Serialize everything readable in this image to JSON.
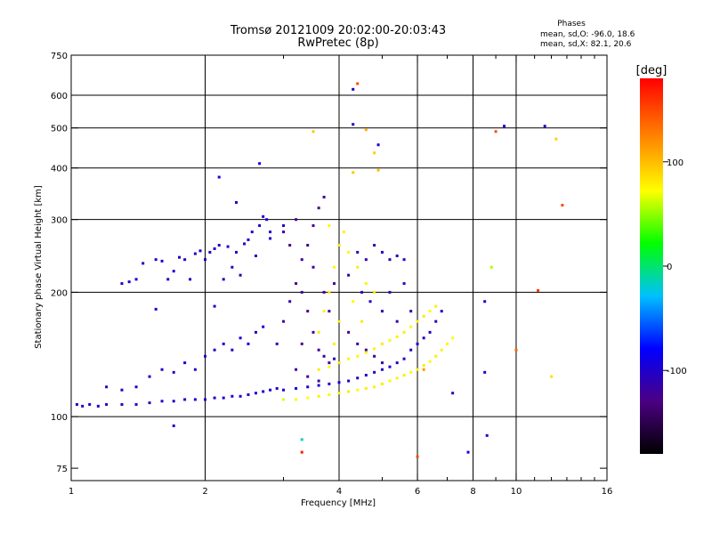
{
  "chart_data": {
    "type": "scatter",
    "title": "Tromsø 20121009 20:02:00-20:03:43",
    "subtitle": "RwPretec (8p)",
    "xlabel": "Frequency [MHz]",
    "ylabel": "Stationary phase Virtual Height [km]",
    "x_scale": "log",
    "y_scale": "log",
    "xlim": [
      1,
      16
    ],
    "ylim": [
      70,
      750
    ],
    "x_ticks": [
      1,
      2,
      4,
      6,
      8,
      10,
      16
    ],
    "x_tick_labels": [
      "1",
      "2",
      "4",
      "6",
      "8",
      "10",
      "16"
    ],
    "x_gridlines": [
      2,
      4,
      6,
      8,
      10
    ],
    "y_ticks": [
      75,
      100,
      200,
      300,
      400,
      500,
      600,
      750
    ],
    "y_tick_labels": [
      "75",
      "100",
      "200",
      "300",
      "400",
      "500",
      "600",
      "750"
    ],
    "y_gridlines": [
      100,
      200,
      300,
      400,
      500,
      600
    ],
    "grid": true,
    "colorbar": {
      "title": "[deg]",
      "range": [
        -180,
        180
      ],
      "ticks": [
        100,
        0,
        -100
      ],
      "tick_labels": [
        "100",
        "0",
        "-100"
      ],
      "position": "right",
      "colormap": [
        "#000000",
        "#4b0082",
        "#0000ff",
        "#00c0ff",
        "#00ff00",
        "#ffff00",
        "#ff8000",
        "#ff0000"
      ]
    },
    "stats_title": "Phases",
    "stats": [
      "mean, sd,O: -96.0, 18.6",
      "mean, sd,X:  82.1, 20.6"
    ],
    "series": [
      {
        "mode": "O",
        "points": [
          [
            1.03,
            107,
            -100
          ],
          [
            1.06,
            106,
            -100
          ],
          [
            1.1,
            107,
            -102
          ],
          [
            1.15,
            106,
            -98
          ],
          [
            1.2,
            107,
            -100
          ],
          [
            1.3,
            107,
            -104
          ],
          [
            1.4,
            107,
            -100
          ],
          [
            1.5,
            108,
            -100
          ],
          [
            1.6,
            109,
            -102
          ],
          [
            1.7,
            109,
            -100
          ],
          [
            1.8,
            110,
            -98
          ],
          [
            1.9,
            110,
            -100
          ],
          [
            2.0,
            110,
            -96
          ],
          [
            2.1,
            111,
            -100
          ],
          [
            2.2,
            111,
            -94
          ],
          [
            2.3,
            112,
            -98
          ],
          [
            2.4,
            112,
            -100
          ],
          [
            2.5,
            113,
            -96
          ],
          [
            2.6,
            114,
            -98
          ],
          [
            2.7,
            115,
            -100
          ],
          [
            2.8,
            116,
            -92
          ],
          [
            2.9,
            117,
            -96
          ],
          [
            1.2,
            118,
            -100
          ],
          [
            1.3,
            116,
            -96
          ],
          [
            1.4,
            118,
            -100
          ],
          [
            1.5,
            125,
            -98
          ],
          [
            1.6,
            130,
            -100
          ],
          [
            1.7,
            128,
            -96
          ],
          [
            1.8,
            135,
            -100
          ],
          [
            1.9,
            130,
            -102
          ],
          [
            2.0,
            140,
            -98
          ],
          [
            2.1,
            145,
            -100
          ],
          [
            2.2,
            150,
            -96
          ],
          [
            2.3,
            145,
            -100
          ],
          [
            2.4,
            155,
            -94
          ],
          [
            2.5,
            150,
            -98
          ],
          [
            2.6,
            160,
            -100
          ],
          [
            2.7,
            165,
            -96
          ],
          [
            1.3,
            210,
            -100
          ],
          [
            1.35,
            212,
            -98
          ],
          [
            1.4,
            215,
            -96
          ],
          [
            1.45,
            235,
            -100
          ],
          [
            1.55,
            240,
            -102
          ],
          [
            1.6,
            238,
            -98
          ],
          [
            1.65,
            215,
            -100
          ],
          [
            1.7,
            225,
            -96
          ],
          [
            1.75,
            243,
            -100
          ],
          [
            1.8,
            240,
            -98
          ],
          [
            1.85,
            215,
            -100
          ],
          [
            1.9,
            248,
            -102
          ],
          [
            1.95,
            252,
            -96
          ],
          [
            2.0,
            240,
            -100
          ],
          [
            2.05,
            250,
            -98
          ],
          [
            2.1,
            255,
            -100
          ],
          [
            2.15,
            260,
            -96
          ],
          [
            2.2,
            215,
            -98
          ],
          [
            2.25,
            258,
            -100
          ],
          [
            2.3,
            230,
            -104
          ],
          [
            2.35,
            250,
            -98
          ],
          [
            2.4,
            220,
            -100
          ],
          [
            2.45,
            262,
            -96
          ],
          [
            2.5,
            268,
            -98
          ],
          [
            2.55,
            280,
            -100
          ],
          [
            2.6,
            245,
            -102
          ],
          [
            2.65,
            290,
            -98
          ],
          [
            2.7,
            305,
            -96
          ],
          [
            2.75,
            300,
            -100
          ],
          [
            2.8,
            270,
            -98
          ],
          [
            2.65,
            410,
            -100
          ],
          [
            2.15,
            380,
            -98
          ],
          [
            2.35,
            330,
            -100
          ],
          [
            2.9,
            150,
            -110
          ],
          [
            3.0,
            170,
            -120
          ],
          [
            3.1,
            190,
            -115
          ],
          [
            3.2,
            210,
            -125
          ],
          [
            3.3,
            240,
            -118
          ],
          [
            3.4,
            260,
            -122
          ],
          [
            3.5,
            290,
            -120
          ],
          [
            3.6,
            320,
            -124
          ],
          [
            3.7,
            340,
            -118
          ],
          [
            3.1,
            260,
            -126
          ],
          [
            3.2,
            300,
            -120
          ],
          [
            3.0,
            280,
            -118
          ],
          [
            3.3,
            200,
            -122
          ],
          [
            3.4,
            180,
            -120
          ],
          [
            3.5,
            160,
            -124
          ],
          [
            3.6,
            145,
            -118
          ],
          [
            3.7,
            140,
            -120
          ],
          [
            3.8,
            135,
            -116
          ],
          [
            3.9,
            138,
            -110
          ],
          [
            3.2,
            130,
            -120
          ],
          [
            3.4,
            125,
            -122
          ],
          [
            3.6,
            122,
            -118
          ],
          [
            3.3,
            150,
            -124
          ],
          [
            3.5,
            230,
            -120
          ],
          [
            3.7,
            200,
            -118
          ],
          [
            3.8,
            180,
            -124
          ],
          [
            3.9,
            210,
            -120
          ],
          [
            4.0,
            170,
            -118
          ],
          [
            4.2,
            160,
            -122
          ],
          [
            4.4,
            150,
            -120
          ],
          [
            4.6,
            145,
            -116
          ],
          [
            4.8,
            140,
            -118
          ],
          [
            5.0,
            135,
            -112
          ],
          [
            4.2,
            220,
            -110
          ],
          [
            4.4,
            250,
            -108
          ],
          [
            4.6,
            240,
            -112
          ],
          [
            4.8,
            260,
            -110
          ],
          [
            5.0,
            250,
            -106
          ],
          [
            5.2,
            240,
            -110
          ],
          [
            5.4,
            245,
            -108
          ],
          [
            5.6,
            240,
            -104
          ],
          [
            5.0,
            180,
            -110
          ],
          [
            5.2,
            200,
            -108
          ],
          [
            5.4,
            170,
            -112
          ],
          [
            5.6,
            210,
            -106
          ],
          [
            5.8,
            180,
            -108
          ],
          [
            4.5,
            200,
            -110
          ],
          [
            4.7,
            190,
            -108
          ],
          [
            3.0,
            116,
            -100
          ],
          [
            3.2,
            117,
            -98
          ],
          [
            3.4,
            118,
            -100
          ],
          [
            3.6,
            119,
            -96
          ],
          [
            3.8,
            120,
            -100
          ],
          [
            4.0,
            121,
            -98
          ],
          [
            4.2,
            122,
            -100
          ],
          [
            4.4,
            124,
            -96
          ],
          [
            4.6,
            126,
            -98
          ],
          [
            4.8,
            128,
            -100
          ],
          [
            5.0,
            130,
            -96
          ],
          [
            5.2,
            132,
            -98
          ],
          [
            5.4,
            135,
            -100
          ],
          [
            5.6,
            138,
            -96
          ],
          [
            5.8,
            145,
            -98
          ],
          [
            6.0,
            150,
            -100
          ],
          [
            6.2,
            155,
            -96
          ],
          [
            6.4,
            160,
            -98
          ],
          [
            6.6,
            170,
            -100
          ],
          [
            6.8,
            180,
            -96
          ],
          [
            4.3,
            620,
            -100
          ],
          [
            4.9,
            455,
            -98
          ],
          [
            4.3,
            510,
            -100
          ],
          [
            3.0,
            290,
            -100
          ],
          [
            2.8,
            280,
            -98
          ],
          [
            1.55,
            182,
            -100
          ],
          [
            2.1,
            185,
            -96
          ],
          [
            1.7,
            95,
            -96
          ],
          [
            8.6,
            90,
            -100
          ],
          [
            7.8,
            82,
            -98
          ],
          [
            7.2,
            114,
            -100
          ],
          [
            8.5,
            128,
            -102
          ],
          [
            8.5,
            190,
            -100
          ],
          [
            9.4,
            505,
            -96
          ],
          [
            11.6,
            505,
            -100
          ]
        ]
      },
      {
        "mode": "X",
        "points": [
          [
            3.0,
            110,
            70
          ],
          [
            3.2,
            110,
            80
          ],
          [
            3.4,
            111,
            78
          ],
          [
            3.6,
            112,
            84
          ],
          [
            3.8,
            113,
            80
          ],
          [
            4.0,
            114,
            82
          ],
          [
            4.2,
            115,
            86
          ],
          [
            4.4,
            116,
            80
          ],
          [
            4.6,
            117,
            84
          ],
          [
            4.8,
            118,
            82
          ],
          [
            5.0,
            120,
            86
          ],
          [
            5.2,
            122,
            80
          ],
          [
            5.4,
            124,
            82
          ],
          [
            5.6,
            126,
            84
          ],
          [
            5.8,
            128,
            80
          ],
          [
            6.0,
            130,
            82
          ],
          [
            6.2,
            133,
            86
          ],
          [
            6.4,
            136,
            80
          ],
          [
            6.6,
            140,
            84
          ],
          [
            6.8,
            145,
            82
          ],
          [
            7.0,
            150,
            80
          ],
          [
            7.2,
            155,
            78
          ],
          [
            3.6,
            130,
            84
          ],
          [
            3.8,
            132,
            80
          ],
          [
            4.0,
            135,
            86
          ],
          [
            4.2,
            138,
            82
          ],
          [
            4.4,
            140,
            80
          ],
          [
            4.6,
            143,
            84
          ],
          [
            4.8,
            146,
            82
          ],
          [
            5.0,
            150,
            86
          ],
          [
            5.2,
            153,
            80
          ],
          [
            5.4,
            156,
            82
          ],
          [
            5.6,
            160,
            84
          ],
          [
            5.8,
            165,
            80
          ],
          [
            6.0,
            170,
            82
          ],
          [
            6.2,
            175,
            86
          ],
          [
            6.4,
            180,
            80
          ],
          [
            6.6,
            185,
            84
          ],
          [
            3.6,
            160,
            86
          ],
          [
            3.7,
            180,
            82
          ],
          [
            3.8,
            200,
            84
          ],
          [
            3.9,
            230,
            80
          ],
          [
            4.0,
            260,
            86
          ],
          [
            4.1,
            280,
            82
          ],
          [
            4.2,
            250,
            80
          ],
          [
            4.4,
            230,
            84
          ],
          [
            4.6,
            210,
            82
          ],
          [
            4.8,
            200,
            86
          ],
          [
            3.8,
            290,
            80
          ],
          [
            3.9,
            150,
            84
          ],
          [
            4.0,
            170,
            82
          ],
          [
            4.3,
            190,
            80
          ],
          [
            4.5,
            170,
            86
          ],
          [
            3.5,
            490,
            100
          ],
          [
            4.6,
            495,
            110
          ],
          [
            4.8,
            435,
            96
          ],
          [
            4.3,
            390,
            100
          ],
          [
            4.9,
            395,
            104
          ],
          [
            12.0,
            125,
            90
          ],
          [
            12.3,
            470,
            96
          ],
          [
            8.8,
            230,
            60
          ],
          [
            6.2,
            130,
            120
          ],
          [
            3.3,
            88,
            -10
          ],
          [
            3.3,
            82,
            170
          ],
          [
            6.0,
            80,
            150
          ],
          [
            11.2,
            202,
            160
          ],
          [
            12.7,
            325,
            150
          ],
          [
            10.0,
            145,
            140
          ],
          [
            9.0,
            490,
            150
          ],
          [
            4.4,
            640,
            150
          ]
        ]
      }
    ]
  }
}
